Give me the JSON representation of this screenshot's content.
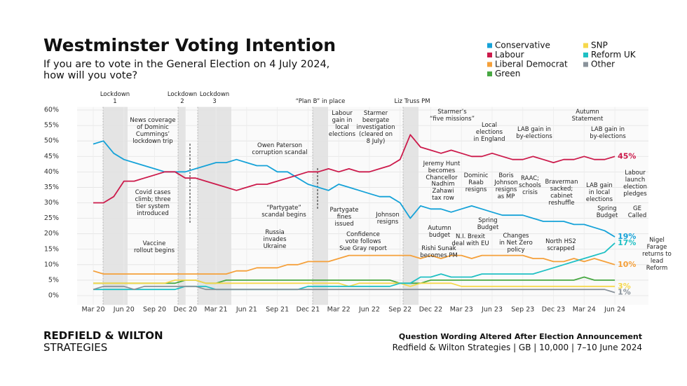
{
  "chart_data": {
    "type": "line",
    "title": "Westminster Voting Intention",
    "subtitle": "If you are to vote in the General Election on 4 July 2024,\nhow will you vote?",
    "categories": [
      "Mar 20",
      null,
      null,
      "Jun 20",
      null,
      null,
      "Sep 20",
      null,
      null,
      "Dec 20",
      null,
      null,
      "Mar 21",
      null,
      null,
      "Jun 21",
      null,
      null,
      "Sep 21",
      null,
      null,
      "Dec 21",
      null,
      null,
      "Mar 22",
      null,
      null,
      "Jun 22",
      null,
      null,
      "Sep 22",
      null,
      null,
      "Dec 22",
      null,
      null,
      "Mar 23",
      null,
      null,
      "Jun 23",
      null,
      null,
      "Sep 23",
      null,
      null,
      "Dec 23",
      null,
      null,
      "Mar 24",
      null,
      null,
      "Jun 24"
    ],
    "series": [
      {
        "name": "Conservative",
        "color": "#15a2d8",
        "values": [
          49,
          50,
          46,
          44,
          43,
          42,
          41,
          40,
          40,
          40,
          41,
          42,
          43,
          43,
          44,
          43,
          42,
          42,
          40,
          40,
          38,
          36,
          35,
          34,
          36,
          35,
          34,
          33,
          32,
          32,
          30,
          25,
          29,
          28,
          28,
          27,
          28,
          29,
          28,
          27,
          26,
          26,
          26,
          25,
          24,
          24,
          24,
          23,
          23,
          22,
          21,
          19
        ],
        "value_labels": [
          null,
          null,
          null,
          null,
          null,
          null,
          null,
          null,
          null,
          null,
          null,
          null,
          null,
          null,
          null,
          null,
          null,
          null,
          null,
          null,
          null,
          null,
          null,
          null,
          null,
          null,
          null,
          null,
          null,
          null,
          null,
          null,
          null,
          null,
          null,
          null,
          null,
          null,
          null,
          null,
          null,
          null,
          null,
          null,
          null,
          null,
          null,
          null,
          null,
          null,
          null,
          "19%"
        ]
      },
      {
        "name": "Labour",
        "color": "#cc1a4b",
        "values": [
          30,
          30,
          32,
          37,
          37,
          38,
          39,
          40,
          40,
          38,
          38,
          37,
          36,
          35,
          34,
          35,
          36,
          36,
          37,
          38,
          39,
          40,
          40,
          41,
          40,
          41,
          40,
          40,
          41,
          42,
          44,
          52,
          48,
          47,
          46,
          47,
          46,
          45,
          45,
          46,
          45,
          44,
          44,
          45,
          44,
          43,
          44,
          44,
          45,
          44,
          44,
          45
        ],
        "value_labels": [
          null,
          null,
          null,
          null,
          null,
          null,
          null,
          null,
          null,
          null,
          null,
          null,
          null,
          null,
          null,
          null,
          null,
          null,
          null,
          null,
          null,
          null,
          null,
          null,
          null,
          null,
          null,
          null,
          null,
          null,
          null,
          null,
          null,
          null,
          null,
          null,
          null,
          null,
          null,
          null,
          null,
          null,
          null,
          null,
          null,
          null,
          null,
          null,
          null,
          null,
          null,
          "45%"
        ]
      },
      {
        "name": "Liberal Democrat",
        "color": "#f5a03a",
        "values": [
          8,
          7,
          7,
          7,
          7,
          7,
          7,
          7,
          7,
          7,
          7,
          7,
          7,
          7,
          8,
          8,
          9,
          9,
          9,
          10,
          10,
          11,
          11,
          11,
          12,
          13,
          13,
          13,
          13,
          13,
          13,
          13,
          12,
          13,
          12,
          13,
          13,
          12,
          13,
          13,
          13,
          13,
          13,
          12,
          12,
          11,
          11,
          12,
          11,
          12,
          11,
          10
        ],
        "value_labels": [
          null,
          null,
          null,
          null,
          null,
          null,
          null,
          null,
          null,
          null,
          null,
          null,
          null,
          null,
          null,
          null,
          null,
          null,
          null,
          null,
          null,
          null,
          null,
          null,
          null,
          null,
          null,
          null,
          null,
          null,
          null,
          null,
          null,
          null,
          null,
          null,
          null,
          null,
          null,
          null,
          null,
          null,
          null,
          null,
          null,
          null,
          null,
          null,
          null,
          null,
          null,
          "10%"
        ]
      },
      {
        "name": "Green",
        "color": "#48a843",
        "values": [
          4,
          4,
          4,
          4,
          4,
          4,
          4,
          4,
          4,
          5,
          5,
          4,
          4,
          5,
          5,
          5,
          5,
          5,
          5,
          5,
          5,
          5,
          5,
          5,
          5,
          5,
          5,
          5,
          5,
          5,
          4,
          4,
          4,
          5,
          5,
          5,
          5,
          5,
          5,
          5,
          5,
          5,
          5,
          5,
          5,
          5,
          5,
          5,
          6,
          5,
          5,
          5
        ]
      },
      {
        "name": "SNP",
        "color": "#f6d84c",
        "values": [
          4,
          4,
          4,
          4,
          4,
          4,
          4,
          4,
          5,
          5,
          5,
          4,
          4,
          4,
          4,
          4,
          4,
          4,
          4,
          4,
          4,
          4,
          4,
          4,
          4,
          3,
          4,
          4,
          4,
          4,
          4,
          3,
          4,
          4,
          4,
          4,
          3,
          3,
          3,
          3,
          3,
          3,
          3,
          3,
          3,
          3,
          3,
          3,
          3,
          3,
          3,
          3
        ],
        "value_labels": [
          null,
          null,
          null,
          null,
          null,
          null,
          null,
          null,
          null,
          null,
          null,
          null,
          null,
          null,
          null,
          null,
          null,
          null,
          null,
          null,
          null,
          null,
          null,
          null,
          null,
          null,
          null,
          null,
          null,
          null,
          null,
          null,
          null,
          null,
          null,
          null,
          null,
          null,
          null,
          null,
          null,
          null,
          null,
          null,
          null,
          null,
          null,
          null,
          null,
          null,
          null,
          "3%"
        ]
      },
      {
        "name": "Reform UK",
        "color": "#1fc0c4",
        "values": [
          2,
          2,
          2,
          2,
          2,
          2,
          2,
          2,
          2,
          3,
          3,
          3,
          2,
          2,
          2,
          2,
          2,
          2,
          2,
          2,
          2,
          3,
          3,
          3,
          3,
          3,
          3,
          3,
          3,
          3,
          4,
          4,
          6,
          6,
          7,
          6,
          6,
          6,
          7,
          7,
          7,
          7,
          7,
          7,
          8,
          9,
          10,
          11,
          12,
          13,
          14,
          17
        ],
        "value_labels": [
          null,
          null,
          null,
          null,
          null,
          null,
          null,
          null,
          null,
          null,
          null,
          null,
          null,
          null,
          null,
          null,
          null,
          null,
          null,
          null,
          null,
          null,
          null,
          null,
          null,
          null,
          null,
          null,
          null,
          null,
          null,
          null,
          null,
          null,
          null,
          null,
          null,
          null,
          null,
          null,
          null,
          null,
          null,
          null,
          null,
          null,
          null,
          null,
          null,
          null,
          null,
          "17%"
        ]
      },
      {
        "name": "Other",
        "color": "#8a939b",
        "values": [
          2,
          3,
          3,
          3,
          2,
          3,
          3,
          3,
          3,
          3,
          3,
          2,
          2,
          2,
          2,
          2,
          2,
          2,
          2,
          2,
          2,
          2,
          2,
          2,
          2,
          2,
          2,
          2,
          2,
          2,
          2,
          2,
          2,
          2,
          2,
          2,
          2,
          2,
          2,
          2,
          2,
          2,
          2,
          2,
          2,
          2,
          2,
          2,
          2,
          2,
          2,
          1
        ],
        "value_labels": [
          null,
          null,
          null,
          null,
          null,
          null,
          null,
          null,
          null,
          null,
          null,
          null,
          null,
          null,
          null,
          null,
          null,
          null,
          null,
          null,
          null,
          null,
          null,
          null,
          null,
          null,
          null,
          null,
          null,
          null,
          null,
          null,
          null,
          null,
          null,
          null,
          null,
          null,
          null,
          null,
          null,
          null,
          null,
          null,
          null,
          null,
          null,
          null,
          null,
          null,
          null,
          "1%"
        ]
      }
    ],
    "ylim": [
      -3,
      61
    ],
    "yticks": [
      {
        "value": 0,
        "label": "0%"
      },
      {
        "value": 5,
        "label": "5%"
      },
      {
        "value": 10,
        "label": "10%"
      },
      {
        "value": 15,
        "label": "15%"
      },
      {
        "value": 20,
        "label": "20%"
      },
      {
        "value": 25,
        "label": "25%"
      },
      {
        "value": 30,
        "label": "30%"
      },
      {
        "value": 35,
        "label": "35%"
      },
      {
        "value": 40,
        "label": "40%"
      },
      {
        "value": 45,
        "label": "45%"
      },
      {
        "value": 50,
        "label": "50%"
      },
      {
        "value": 55,
        "label": "55%"
      },
      {
        "value": 60,
        "label": "60%"
      }
    ],
    "grid": true,
    "periods": [
      "Lockdown\n1",
      "Lockdown\n2",
      "Lockdown\n3",
      "“Plan B” in place",
      "Liz Truss PM"
    ],
    "annotations": [
      "News coverage\nof Dominic\nCummings’\nlockdown trip",
      "Covid cases\nclimb; three\ntier system\nintroduced",
      "Vaccine\nrollout begins",
      "Owen Paterson\ncorruption scandal",
      "“Partygate”\nscandal begins",
      "Russia\ninvades\nUkraine",
      "Labour\ngain in\nlocal\nelections",
      "Starmer\nbeergate\ninvestigation\n(cleared on\n8 July)",
      "Partygate\nfines\nissued",
      "Confidence\nvote follows\nSue Gray report",
      "Johnson\nresigns",
      "Starmer’s\n“five missions”",
      "Jeremy Hunt\nbecomes\nChancellor",
      "Nadhim\nZahawi\ntax row",
      "Autumn\nbudget",
      "Rishi Sunak\nbecomes PM",
      "Dominic\nRaab\nresigns",
      "N.I. Brexit\ndeal with EU",
      "Spring\nBudget",
      "Local\nelections\nin England",
      "Boris\nJohnson\nresigns\nas MP",
      "LAB gain in\nby-elections",
      "RAAC;\nschools\ncrisis",
      "Changes\nin Net Zero\npolicy",
      "Braverman\nsacked;\ncabinet\nreshuffle",
      "North HS2\nscrapped",
      "Autumn\nStatement",
      "LAB gain in\nby-elections",
      "LAB gain\nin local\nelections",
      "Labour\nlaunch\nelection\npledges",
      "Spring\nBudget",
      "GE\nCalled",
      "Nigel Farage\nreturns to\nlead Reform"
    ],
    "brand": [
      "REDFIELD & WILTON",
      "STRATEGIES"
    ],
    "footnote": "Question Wording Altered After Election Announcement",
    "source": "Redfield & Wilton Strategies | GB | 10,000 | 7–10 June 2024"
  }
}
